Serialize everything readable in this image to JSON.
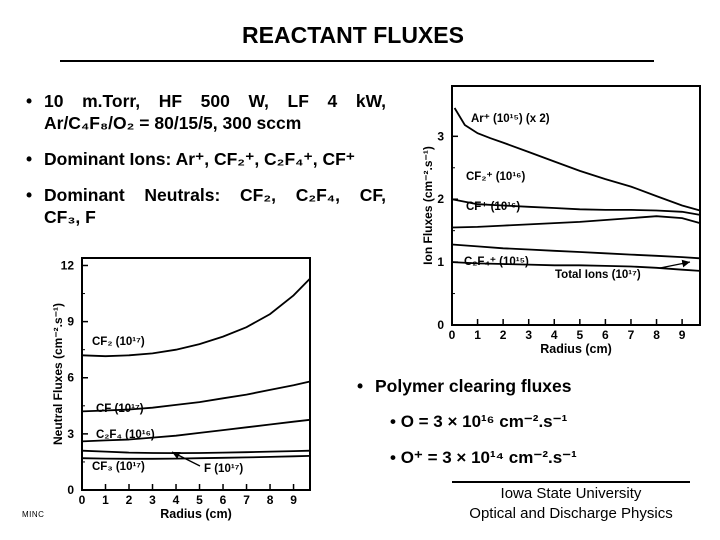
{
  "title": "REACTANT FLUXES",
  "bullets": [
    {
      "line1": [
        "10",
        "m.Torr,",
        "HF",
        "500",
        "W,",
        "LF",
        "4",
        "kW,"
      ],
      "line2": "Ar/C₄F₈/O₂ = 80/15/5, 300 sccm"
    },
    {
      "text": "Dominant Ions: Ar⁺, CF₂⁺, C₂F₄⁺, CF⁺"
    },
    {
      "line1": [
        "Dominant",
        "Neutrals:",
        "CF₂,",
        "C₂F₄,",
        "CF,"
      ],
      "line2": "CF₃, F"
    }
  ],
  "bullet_glyph": "•",
  "polymer": {
    "heading": "Polymer clearing fluxes",
    "items": [
      "O = 3 × 10¹⁶ cm⁻².s⁻¹",
      "O⁺ = 3 × 10¹⁴ cm⁻².s⁻¹"
    ]
  },
  "footer": {
    "line1": "Iowa State University",
    "line2": "Optical and Discharge Physics"
  },
  "tag": "MINC",
  "chart_data": [
    {
      "type": "line",
      "xlabel": "Radius (cm)",
      "ylabel": "Ion Fluxes (cm⁻².s⁻¹)",
      "xlim": [
        0,
        9.7
      ],
      "ylim": [
        0,
        3.8
      ],
      "xticks": [
        "0",
        "1",
        "2",
        "3",
        "4",
        "5",
        "6",
        "7",
        "8",
        "9"
      ],
      "yticks": [
        "0",
        "1",
        "2",
        "3"
      ],
      "series": [
        {
          "name": "Ar⁺ (10¹⁵) (x 2)",
          "x": [
            0.1,
            0.5,
            1,
            1.5,
            2,
            3,
            4,
            5,
            6,
            7,
            8,
            9,
            9.7
          ],
          "y": [
            3.45,
            3.18,
            3.05,
            2.97,
            2.9,
            2.75,
            2.6,
            2.45,
            2.32,
            2.2,
            2.05,
            1.9,
            1.82
          ]
        },
        {
          "name": "CF₂⁺ (10¹⁶)",
          "x": [
            0,
            1,
            2,
            3,
            4,
            5,
            6,
            7,
            8,
            9,
            9.7
          ],
          "y": [
            2.0,
            1.92,
            1.9,
            1.88,
            1.86,
            1.84,
            1.83,
            1.83,
            1.82,
            1.8,
            1.75
          ]
        },
        {
          "name": "CF⁺ (10¹⁶)",
          "x": [
            0,
            1,
            2,
            3,
            4,
            5,
            6,
            7,
            8,
            9,
            9.7
          ],
          "y": [
            1.55,
            1.56,
            1.58,
            1.6,
            1.62,
            1.64,
            1.67,
            1.7,
            1.73,
            1.7,
            1.62
          ]
        },
        {
          "name": "C₂F₄⁺ (10¹⁵)",
          "x": [
            0,
            1,
            2,
            3,
            4,
            5,
            6,
            7,
            8,
            9,
            9.7
          ],
          "y": [
            1.28,
            1.25,
            1.22,
            1.2,
            1.18,
            1.16,
            1.14,
            1.12,
            1.1,
            1.08,
            1.06
          ]
        },
        {
          "name": "Total Ions (10¹⁷)",
          "x": [
            0,
            1,
            2,
            3,
            4,
            5,
            6,
            7,
            8,
            9,
            9.7
          ],
          "y": [
            1.0,
            0.98,
            0.97,
            0.96,
            0.95,
            0.95,
            0.94,
            0.93,
            0.91,
            0.88,
            0.86
          ]
        }
      ]
    },
    {
      "type": "line",
      "xlabel": "Radius (cm)",
      "ylabel": "Neutral Fluxes (cm⁻².s⁻¹)",
      "xlim": [
        0,
        9.7
      ],
      "ylim": [
        0,
        12.4
      ],
      "xticks": [
        "0",
        "1",
        "2",
        "3",
        "4",
        "5",
        "6",
        "7",
        "8",
        "9"
      ],
      "yticks": [
        "0",
        "3",
        "6",
        "9",
        "12"
      ],
      "series": [
        {
          "name": "CF₂ (10¹⁷)",
          "x": [
            0,
            1,
            2,
            3,
            4,
            5,
            6,
            7,
            8,
            9,
            9.7
          ],
          "y": [
            7.2,
            7.15,
            7.2,
            7.3,
            7.5,
            7.8,
            8.2,
            8.7,
            9.4,
            10.4,
            11.3
          ]
        },
        {
          "name": "CF (10¹⁷)",
          "x": [
            0,
            1,
            2,
            3,
            4,
            5,
            6,
            7,
            8,
            9,
            9.7
          ],
          "y": [
            4.2,
            4.25,
            4.3,
            4.4,
            4.55,
            4.7,
            4.9,
            5.1,
            5.35,
            5.6,
            5.8
          ]
        },
        {
          "name": "C₂F₄ (10¹⁶)",
          "x": [
            0,
            1,
            2,
            3,
            4,
            5,
            6,
            7,
            8,
            9,
            9.7
          ],
          "y": [
            2.6,
            2.65,
            2.7,
            2.8,
            2.9,
            3.05,
            3.2,
            3.35,
            3.5,
            3.65,
            3.75
          ]
        },
        {
          "name": "CF₃ (10¹⁷)",
          "x": [
            0,
            1,
            2,
            3,
            4,
            5,
            6,
            7,
            8,
            9,
            9.7
          ],
          "y": [
            2.1,
            2.05,
            2.0,
            1.98,
            1.97,
            1.98,
            2.0,
            2.02,
            2.05,
            2.08,
            2.1
          ]
        },
        {
          "name": "F (10¹⁷)",
          "x": [
            0,
            1,
            2,
            3,
            4,
            5,
            6,
            7,
            8,
            9,
            9.7
          ],
          "y": [
            1.7,
            1.68,
            1.67,
            1.67,
            1.68,
            1.7,
            1.72,
            1.74,
            1.77,
            1.8,
            1.82
          ]
        }
      ]
    }
  ]
}
